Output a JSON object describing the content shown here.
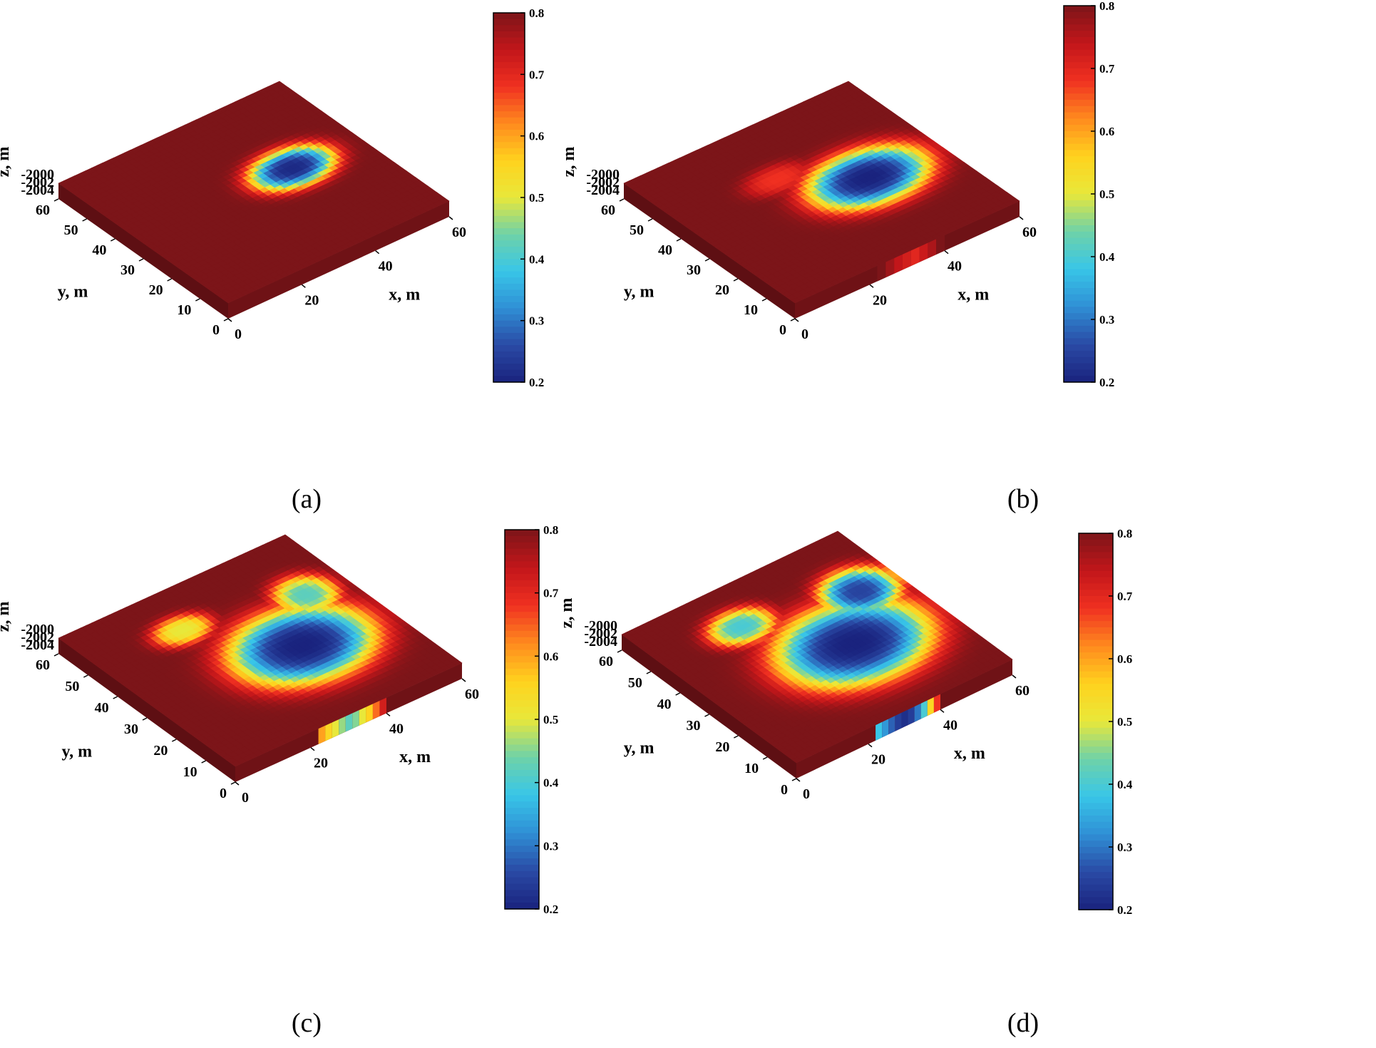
{
  "colormap": [
    "#1a237e",
    "#2a4aa5",
    "#2f8fd5",
    "#38c6e8",
    "#6fd2a8",
    "#e8e83a",
    "#ffd21e",
    "#ff8a1e",
    "#f03021",
    "#c2161a",
    "#7c1519"
  ],
  "chart_data": [
    {
      "type": "heatmap",
      "panel": "(a)",
      "xlabel": "x, m",
      "ylabel": "y, m",
      "zlabel": "z, m",
      "xticks": [
        "0",
        "20",
        "40",
        "60"
      ],
      "yticks": [
        "0",
        "10",
        "20",
        "30",
        "40",
        "50",
        "60"
      ],
      "zticks": [
        "-2000",
        "-2002",
        "-2004"
      ],
      "xlim": [
        0,
        60
      ],
      "ylim": [
        0,
        60
      ],
      "zlim": [
        -2005,
        -2000
      ],
      "colorbar": {
        "min": 0.2,
        "max": 0.8,
        "ticks": [
          "0.8",
          "0.7",
          "0.6",
          "0.5",
          "0.4",
          "0.3",
          "0.2"
        ]
      },
      "background_value": 0.8,
      "features": [
        {
          "kind": "blob",
          "x": 42,
          "y": 32,
          "rx": 10,
          "ry": 7,
          "value": 0.21
        }
      ],
      "edge_strip": []
    },
    {
      "type": "heatmap",
      "panel": "(b)",
      "xlabel": "x, m",
      "ylabel": "y, m",
      "zlabel": "z, m",
      "xticks": [
        "0",
        "20",
        "40",
        "60"
      ],
      "yticks": [
        "0",
        "10",
        "20",
        "30",
        "40",
        "50",
        "60"
      ],
      "zticks": [
        "-2000",
        "-2002",
        "-2004"
      ],
      "xlim": [
        0,
        60
      ],
      "ylim": [
        0,
        60
      ],
      "zlim": [
        -2005,
        -2000
      ],
      "colorbar": {
        "min": 0.2,
        "max": 0.8,
        "ticks": [
          "0.8",
          "0.7",
          "0.6",
          "0.5",
          "0.4",
          "0.3",
          "0.2"
        ]
      },
      "background_value": 0.8,
      "features": [
        {
          "kind": "blob",
          "x": 41,
          "y": 28,
          "rx": 14,
          "ry": 10,
          "value": 0.2
        },
        {
          "kind": "blob",
          "x": 26,
          "y": 40,
          "rx": 8,
          "ry": 5,
          "value": 0.68
        }
      ],
      "edge_strip": [
        0.8,
        0.77,
        0.74,
        0.72,
        0.7,
        0.73,
        0.76,
        0.8
      ]
    },
    {
      "type": "heatmap",
      "panel": "(c)",
      "xlabel": "x, m",
      "ylabel": "y, m",
      "zlabel": "z, m",
      "xticks": [
        "0",
        "20",
        "40",
        "60"
      ],
      "yticks": [
        "0",
        "10",
        "20",
        "30",
        "40",
        "50",
        "60"
      ],
      "zticks": [
        "-2000",
        "-2002",
        "-2004"
      ],
      "xlim": [
        0,
        60
      ],
      "ylim": [
        0,
        60
      ],
      "zlim": [
        -2005,
        -2000
      ],
      "colorbar": {
        "min": 0.2,
        "max": 0.8,
        "ticks": [
          "0.8",
          "0.7",
          "0.6",
          "0.5",
          "0.4",
          "0.3",
          "0.2"
        ]
      },
      "background_value": 0.8,
      "features": [
        {
          "kind": "blob",
          "x": 38,
          "y": 26,
          "rx": 16,
          "ry": 13,
          "value": 0.2
        },
        {
          "kind": "blob",
          "x": 22,
          "y": 46,
          "rx": 7,
          "ry": 5,
          "value": 0.5
        },
        {
          "kind": "blob",
          "x": 50,
          "y": 40,
          "rx": 7,
          "ry": 7,
          "value": 0.42
        }
      ],
      "edge_strip": [
        0.6,
        0.55,
        0.5,
        0.46,
        0.42,
        0.45,
        0.5,
        0.56,
        0.64,
        0.72
      ]
    },
    {
      "type": "heatmap",
      "panel": "(d)",
      "xlabel": "x, m",
      "ylabel": "y, m",
      "zlabel": "z, m",
      "xticks": [
        "0",
        "20",
        "40",
        "60"
      ],
      "yticks": [
        "0",
        "10",
        "20",
        "30",
        "40",
        "50",
        "60"
      ],
      "zticks": [
        "-2000",
        "-2002",
        "-2004"
      ],
      "xlim": [
        0,
        60
      ],
      "ylim": [
        0,
        60
      ],
      "zlim": [
        -2005,
        -2000
      ],
      "colorbar": {
        "min": 0.2,
        "max": 0.8,
        "ticks": [
          "0.8",
          "0.7",
          "0.6",
          "0.5",
          "0.4",
          "0.3",
          "0.2"
        ]
      },
      "background_value": 0.8,
      "features": [
        {
          "kind": "blob",
          "x": 37,
          "y": 26,
          "rx": 18,
          "ry": 14,
          "value": 0.2
        },
        {
          "kind": "blob",
          "x": 22,
          "y": 46,
          "rx": 8,
          "ry": 6,
          "value": 0.4
        },
        {
          "kind": "blob",
          "x": 50,
          "y": 40,
          "rx": 9,
          "ry": 8,
          "value": 0.25
        }
      ],
      "edge_strip": [
        0.38,
        0.33,
        0.28,
        0.24,
        0.22,
        0.24,
        0.3,
        0.4,
        0.55,
        0.68
      ]
    }
  ]
}
